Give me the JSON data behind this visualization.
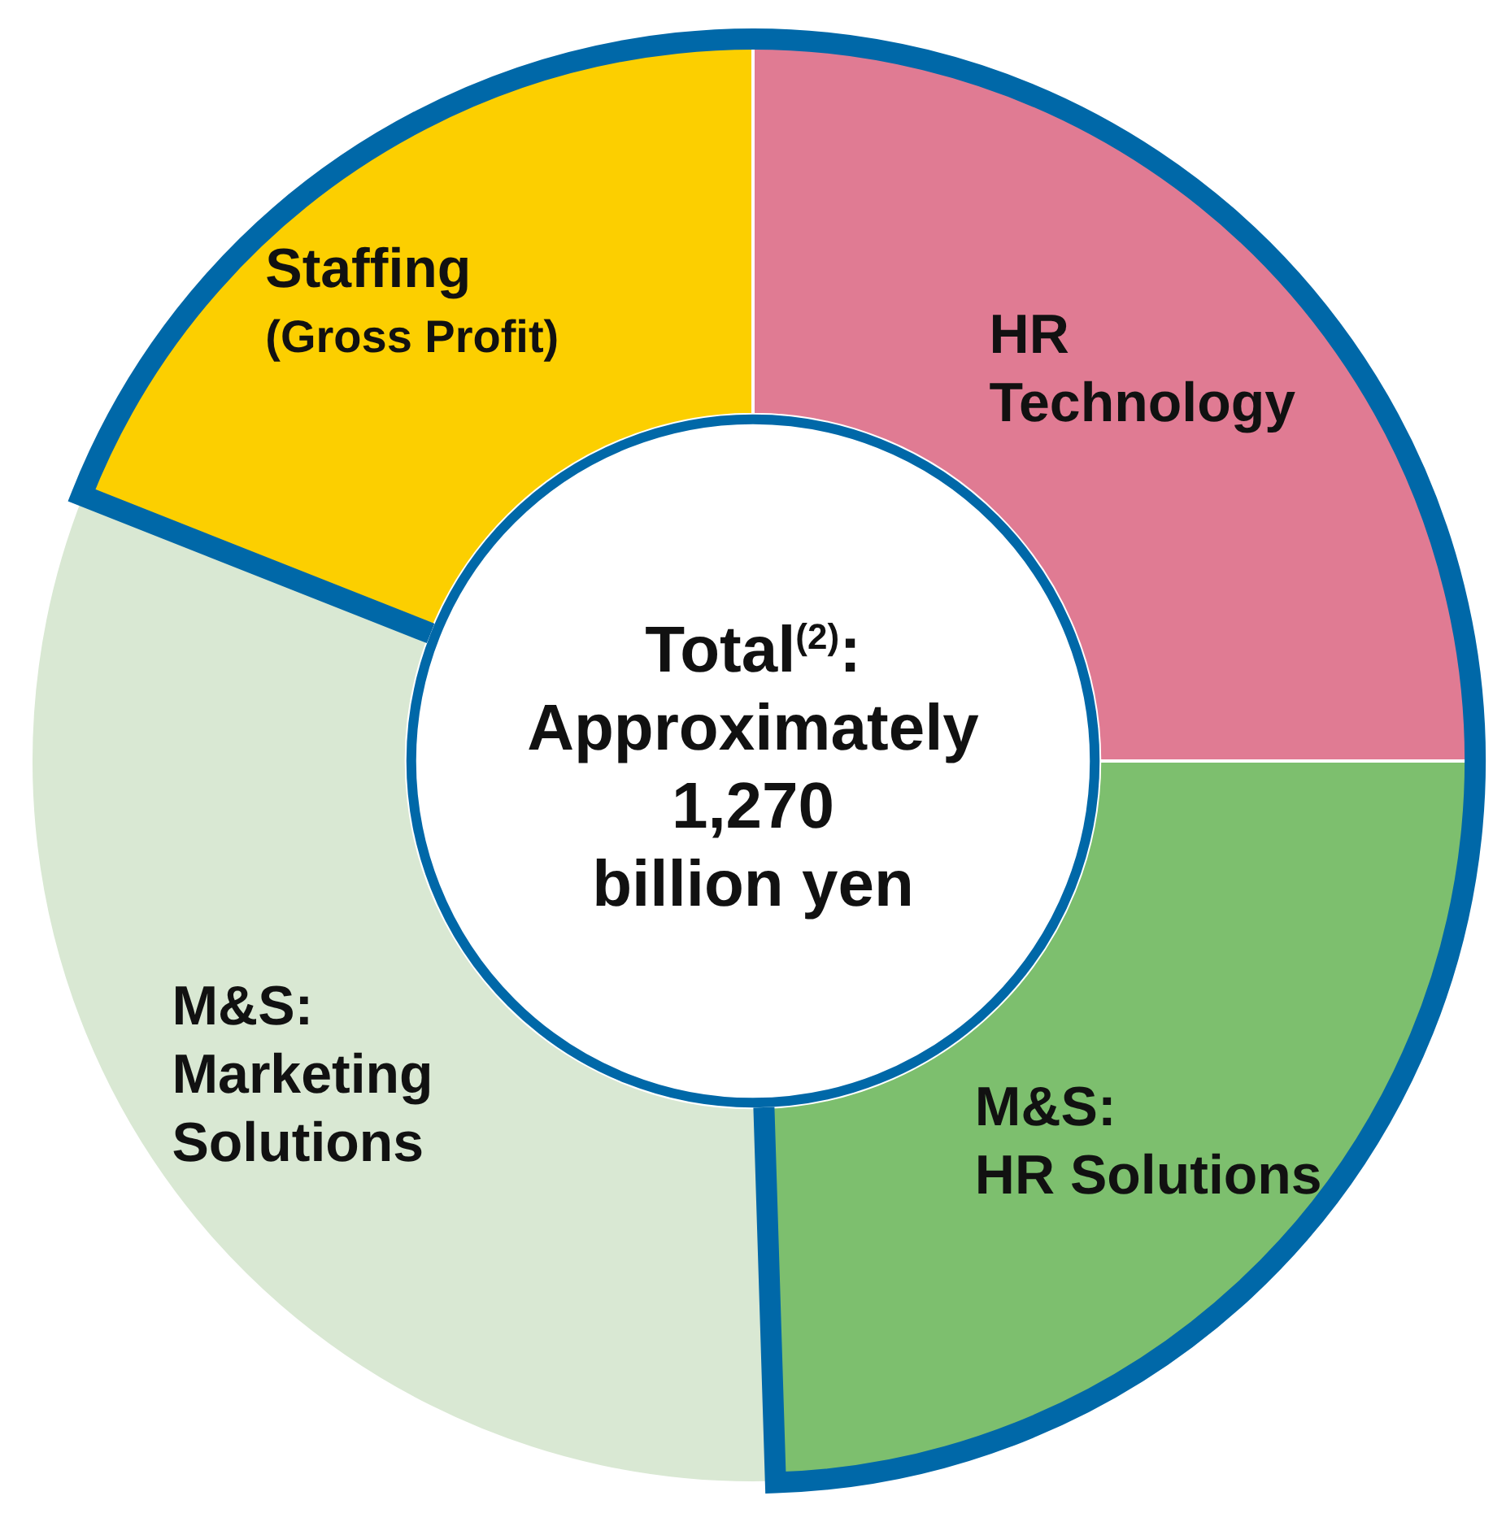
{
  "chart_data": {
    "type": "donut",
    "categories": [
      "HR\nTechnology",
      "M&S:\nHR Solutions",
      "M&S:\nMarketing\nSolutions",
      "Staffing\n(Gross Profit)"
    ],
    "values": [
      25,
      24.5,
      31.5,
      19
    ],
    "colors": [
      "#e07b93",
      "#7dbf6e",
      "#d9e8d3",
      "#fccf00"
    ],
    "annotations": [
      "Total$^{(2)}$:\nApproximately\n1,270\nbillion yen"
    ],
    "legend": false
  }
}
